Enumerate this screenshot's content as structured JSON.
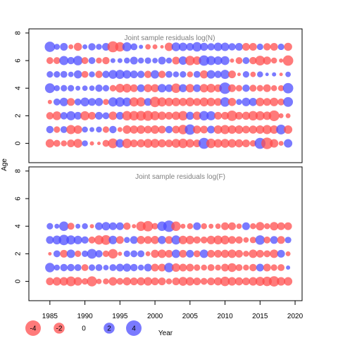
{
  "chart_data": {
    "type": "scatter",
    "description": "Bubble plot of joint sample residuals; bubble size proportional to |residual|, red = negative, blue = positive",
    "xlabel": "Year",
    "ylabel": "Age",
    "xlim": [
      1982,
      2021
    ],
    "x_ticks": [
      1985,
      1990,
      1995,
      2000,
      2005,
      2010,
      2015,
      2020
    ],
    "colors": {
      "negative": "#ff4d4d",
      "positive": "#4d4dff",
      "opacity": 0.75
    },
    "legend": {
      "placement": "bottom-left",
      "entries": [
        {
          "label": "-4",
          "value": -4
        },
        {
          "label": "-2",
          "value": -2
        },
        {
          "label": "0",
          "value": 0
        },
        {
          "label": "2",
          "value": 2
        },
        {
          "label": "4",
          "value": 4
        }
      ]
    },
    "panels": [
      {
        "title": "Joint sample residuals log(N)",
        "ylim": [
          -1.4,
          8.3
        ],
        "y_ticks": [
          0,
          2,
          4,
          6,
          8
        ],
        "years": [
          1985,
          1986,
          1987,
          1988,
          1989,
          1990,
          1991,
          1992,
          1993,
          1994,
          1995,
          1996,
          1997,
          1998,
          1999,
          2000,
          2001,
          2002,
          2003,
          2004,
          2005,
          2006,
          2007,
          2008,
          2009,
          2010,
          2011,
          2012,
          2013,
          2014,
          2015,
          2016,
          2017,
          2018,
          2019
        ],
        "ages": [
          0,
          1,
          2,
          3,
          4,
          5,
          6,
          7
        ],
        "residuals": [
          [
            -1.2,
            -0.8,
            -0.6,
            -1.0,
            -1.3,
            0.6,
            -0.3,
            -0.2,
            -0.8,
            -1.6,
            1.2,
            -1.5,
            -1.0,
            -1.1,
            -1.3,
            -1.3,
            -1.1,
            -1.0,
            -1.3,
            -1.5,
            -1.2,
            -1.0,
            2.0,
            -1.5,
            -1.2,
            -1.3,
            -1.2,
            -1.1,
            -1.0,
            -0.7,
            2.0,
            -2.2,
            -1.2,
            -0.4,
            1.2
          ],
          [
            0.9,
            -0.7,
            0.8,
            -1.4,
            -1.2,
            0.6,
            0.4,
            0.6,
            -0.7,
            0.9,
            -0.4,
            -1.2,
            -1.1,
            -1.2,
            -1.0,
            -1.2,
            -1.0,
            0.9,
            -1.0,
            -1.5,
            1.8,
            -1.1,
            -1.0,
            1.0,
            -1.2,
            -1.4,
            -1.2,
            -1.2,
            -1.0,
            -1.1,
            -1.2,
            -1.4,
            -1.2,
            1.6,
            -1.2
          ],
          [
            -0.9,
            -1.3,
            0.9,
            1.4,
            1.0,
            -1.4,
            -1.0,
            1.0,
            0.8,
            -1.2,
            1.0,
            -1.5,
            -1.5,
            -1.6,
            -1.7,
            -1.4,
            -1.2,
            -1.0,
            -1.2,
            -1.5,
            1.1,
            -1.2,
            1.5,
            1.4,
            -1.0,
            -1.0,
            -1.8,
            -1.0,
            -1.1,
            -1.5,
            -1.4,
            -1.2,
            -1.9,
            -0.4,
            -0.4
          ],
          [
            -0.3,
            0.8,
            1.2,
            -1.0,
            0.8,
            1.3,
            1.0,
            1.1,
            -0.6,
            1.4,
            1.5,
            1.3,
            -1.4,
            -1.4,
            1.0,
            -1.8,
            -1.4,
            -1.2,
            -1.2,
            -1.1,
            -1.3,
            -1.0,
            -1.3,
            -1.2,
            -1.0,
            1.5,
            -1.1,
            0.6,
            1.2,
            1.1,
            -1.2,
            -1.0,
            -1.2,
            -0.8,
            1.6
          ],
          [
            1.6,
            0.6,
            0.7,
            0.7,
            0.4,
            0.5,
            0.5,
            0.9,
            0.7,
            -0.7,
            -1.3,
            -1.3,
            -1.0,
            1.0,
            -1.1,
            -1.1,
            1.2,
            1.0,
            -1.5,
            1.1,
            -1.2,
            1.0,
            -1.2,
            -1.3,
            -1.0,
            2.2,
            -1.0,
            -0.7,
            0.9,
            -0.8,
            -0.7,
            -1.0,
            -0.6,
            -0.6,
            1.8
          ],
          [
            0.7,
            0.7,
            0.8,
            0.5,
            1.1,
            -0.8,
            0.6,
            -0.9,
            0.9,
            1.3,
            1.4,
            1.2,
            1.0,
            0.9,
            -0.9,
            1.2,
            -0.9,
            0.8,
            0.6,
            0.7,
            -0.6,
            0.8,
            -1.1,
            1.2,
            0.9,
            1.4,
            -1.0,
            -0.2,
            0.7,
            -0.5,
            0.6,
            0.2,
            0.3,
            -0.2,
            0.5
          ],
          [
            -0.8,
            -0.8,
            1.4,
            0.9,
            1.5,
            -0.8,
            0.8,
            -0.6,
            -0.9,
            0.4,
            0.4,
            0.6,
            1.0,
            0.6,
            0.7,
            0.5,
            1.0,
            0.6,
            -1.0,
            1.2,
            -1.5,
            -1.2,
            1.8,
            1.4,
            1.2,
            1.3,
            -0.3,
            -0.8,
            0.8,
            -0.9,
            -1.6,
            -1.1,
            -0.6,
            -0.3,
            -1.8
          ],
          [
            1.8,
            0.6,
            1.0,
            -0.4,
            -1.1,
            0.4,
            0.9,
            0.6,
            1.0,
            -2.0,
            -1.5,
            1.4,
            0.8,
            0.3,
            -0.5,
            -0.4,
            -0.2,
            -1.2,
            1.3,
            1.2,
            1.0,
            1.5,
            1.1,
            0.9,
            1.2,
            1.2,
            0.9,
            1.0,
            -1.0,
            -1.0,
            0.7,
            -0.9,
            -1.0,
            0.7,
            -1.1
          ]
        ]
      },
      {
        "title": "Joint sample residuals log(F)",
        "ylim": [
          -1.4,
          8.3
        ],
        "y_ticks": [
          0,
          2,
          4,
          6,
          8
        ],
        "years": [
          1985,
          1986,
          1987,
          1988,
          1989,
          1990,
          1991,
          1992,
          1993,
          1994,
          1995,
          1996,
          1997,
          1998,
          1999,
          2000,
          2001,
          2002,
          2003,
          2004,
          2005,
          2006,
          2007,
          2008,
          2009,
          2010,
          2011,
          2012,
          2013,
          2014,
          2015,
          2016,
          2017,
          2018,
          2019
        ],
        "ages": [
          0,
          1,
          2,
          3,
          4
        ],
        "residuals": [
          [
            -1.0,
            -1.2,
            -1.2,
            -1.6,
            -1.2,
            -0.7,
            -1.7,
            -0.5,
            -0.6,
            -1.2,
            -0.8,
            -1.1,
            -1.0,
            -1.1,
            -1.2,
            -1.0,
            -1.0,
            -0.6,
            -1.0,
            -1.3,
            -1.2,
            -1.0,
            -0.8,
            -1.0,
            -1.1,
            -1.5,
            -1.2,
            -1.1,
            -1.0,
            -1.2,
            -1.4,
            -1.5,
            -1.8,
            -1.2,
            -1.2
          ],
          [
            1.5,
            0.6,
            0.9,
            0.9,
            0.8,
            -0.8,
            0.7,
            0.8,
            0.5,
            0.8,
            1.0,
            1.1,
            0.9,
            0.6,
            1.0,
            -1.0,
            -1.0,
            1.5,
            -1.2,
            -1.0,
            -1.0,
            -0.7,
            -0.6,
            -0.8,
            -0.6,
            -1.0,
            -1.3,
            -0.8,
            -0.6,
            -0.9,
            1.0,
            -1.0,
            -0.7,
            -0.8,
            0.3
          ],
          [
            -0.2,
            0.8,
            -1.0,
            1.2,
            -0.7,
            0.7,
            1.6,
            0.9,
            -0.7,
            -1.5,
            -0.3,
            0.7,
            0.8,
            0.8,
            -0.4,
            -1.1,
            -1.2,
            -1.0,
            1.2,
            -1.0,
            1.0,
            -0.8,
            1.2,
            -1.0,
            -1.0,
            -1.1,
            -1.2,
            -1.0,
            -0.6,
            -1.2,
            -1.0,
            -0.8,
            -1.2,
            1.0,
            -0.4
          ],
          [
            1.0,
            1.3,
            1.8,
            1.4,
            1.2,
            0.9,
            -0.8,
            -1.4,
            -1.6,
            1.2,
            -1.0,
            0.6,
            1.0,
            -1.1,
            -1.0,
            -1.1,
            1.1,
            -1.0,
            1.4,
            -1.2,
            -1.2,
            -0.9,
            -0.8,
            -1.2,
            -1.3,
            -1.3,
            -1.0,
            -0.9,
            -0.5,
            -0.7,
            1.5,
            -0.8,
            1.0,
            -1.0,
            0.7
          ],
          [
            0.7,
            0.4,
            1.5,
            -0.8,
            0.4,
            0.6,
            -0.3,
            1.0,
            1.2,
            1.0,
            1.0,
            -0.9,
            -0.3,
            -1.5,
            -1.8,
            -0.7,
            1.5,
            2.2,
            -1.5,
            -0.4,
            -0.6,
            1.0,
            -0.6,
            -0.4,
            -0.5,
            -1.0,
            -1.0,
            -0.5,
            1.0,
            -0.6,
            -1.2,
            -0.6,
            -1.2,
            -1.0,
            -1.0
          ]
        ]
      }
    ]
  }
}
